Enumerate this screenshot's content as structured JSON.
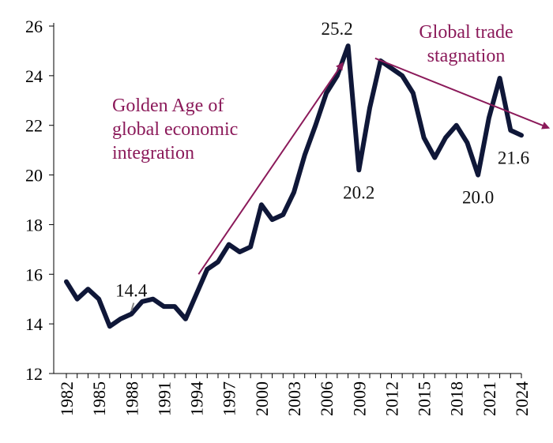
{
  "colors": {
    "line": "#0f1738",
    "annotation": "#8b1a5a",
    "axis": "#000000",
    "label": "#111111"
  },
  "chart_data": {
    "type": "line",
    "title": "",
    "xlabel": "",
    "ylabel": "",
    "xlim": [
      1982,
      2024
    ],
    "ylim": [
      12,
      26
    ],
    "grid": false,
    "legend": "none",
    "yticks": [
      12,
      14,
      16,
      18,
      20,
      22,
      24,
      26
    ],
    "xticks": [
      1982,
      1985,
      1988,
      1991,
      1994,
      1997,
      2000,
      2003,
      2006,
      2009,
      2012,
      2015,
      2018,
      2021,
      2024
    ],
    "series": [
      {
        "name": "",
        "x": [
          1982,
          1983,
          1984,
          1985,
          1986,
          1987,
          1988,
          1989,
          1990,
          1991,
          1992,
          1993,
          1994,
          1995,
          1996,
          1997,
          1998,
          1999,
          2000,
          2001,
          2002,
          2003,
          2004,
          2005,
          2006,
          2007,
          2008,
          2009,
          2010,
          2011,
          2012,
          2013,
          2014,
          2015,
          2016,
          2017,
          2018,
          2019,
          2020,
          2021,
          2022,
          2023,
          2024
        ],
        "y": [
          15.7,
          15.0,
          15.4,
          15.0,
          13.9,
          14.2,
          14.4,
          14.9,
          15.0,
          14.7,
          14.7,
          14.2,
          15.2,
          16.2,
          16.5,
          17.2,
          16.9,
          17.1,
          18.8,
          18.2,
          18.4,
          19.3,
          20.8,
          22.0,
          23.3,
          24.0,
          25.2,
          20.2,
          22.7,
          24.6,
          24.3,
          24.0,
          23.3,
          21.5,
          20.7,
          21.5,
          22.0,
          21.3,
          20.0,
          22.3,
          23.9,
          21.8,
          21.6
        ]
      }
    ],
    "data_labels": [
      {
        "x": 1988,
        "y": 14.4,
        "text": "14.4",
        "pos": "above"
      },
      {
        "x": 2008,
        "y": 25.2,
        "text": "25.2",
        "pos": "above"
      },
      {
        "x": 2009,
        "y": 20.2,
        "text": "20.2",
        "pos": "below"
      },
      {
        "x": 2020,
        "y": 20.0,
        "text": "20.0",
        "pos": "below"
      },
      {
        "x": 2024,
        "y": 21.6,
        "text": "21.6",
        "pos": "below"
      }
    ],
    "annotations": [
      {
        "lines": [
          "Golden Age of",
          "global economic",
          "integration"
        ],
        "arrow": {
          "from": [
            1994.2,
            16.0
          ],
          "to": [
            2007.5,
            24.5
          ]
        }
      },
      {
        "lines": [
          "Global trade",
          "stagnation"
        ],
        "arrow": {
          "from": [
            2010.5,
            24.7
          ],
          "to": [
            2026.5,
            21.9
          ]
        }
      }
    ]
  }
}
